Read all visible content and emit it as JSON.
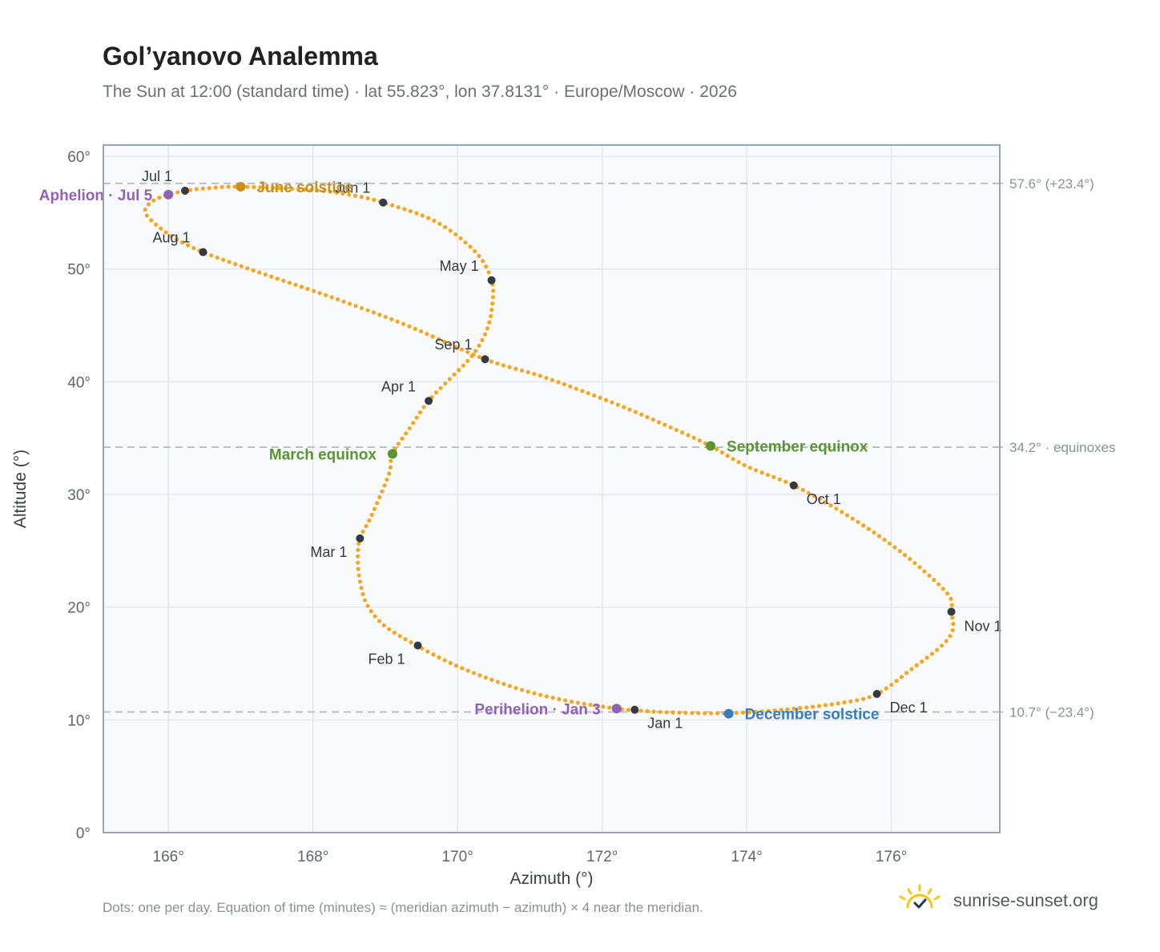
{
  "header": {
    "title": "Gol’yanovo Analemma",
    "subtitle": "The Sun at 12:00 (standard time) · lat 55.823°, lon 37.8131° · Europe/Moscow · 2026"
  },
  "footer": {
    "note": "Dots: one per day. Equation of time (minutes) ≈ (meridian azimuth − azimuth) × 4 near the meridian.",
    "brand": "sunrise-sunset.org",
    "logo_icon": "sun-check-icon"
  },
  "colors": {
    "curve": "#f5a623",
    "month_marker": "#343a40",
    "solstice_june": "#c8901a",
    "equinox": "#5a9534",
    "solstice_december": "#3a7bbd",
    "apsis": "#9161b5",
    "reference_line": "#b9c1cb",
    "plot_bg": "#f8fafc",
    "frame": "#9aa5b3"
  },
  "chart_data": {
    "type": "scatter",
    "xlabel": "Azimuth (°)",
    "ylabel": "Altitude (°)",
    "xlim": [
      165.1,
      177.5
    ],
    "ylim": [
      0,
      61
    ],
    "xticks": [
      166,
      168,
      170,
      172,
      174,
      176
    ],
    "yticks": [
      0,
      10,
      20,
      30,
      40,
      50,
      60
    ],
    "tick_suffix": "°",
    "grid": true,
    "curve_points": [
      [
        172.45,
        10.85
      ],
      [
        172.15,
        11.05
      ],
      [
        171.55,
        11.65
      ],
      [
        170.95,
        12.55
      ],
      [
        170.35,
        13.85
      ],
      [
        169.9,
        15.05
      ],
      [
        169.45,
        16.55
      ],
      [
        169.0,
        18.3
      ],
      [
        168.75,
        20.2
      ],
      [
        168.65,
        22.3
      ],
      [
        168.62,
        24.2
      ],
      [
        168.65,
        26.1
      ],
      [
        168.8,
        28.0
      ],
      [
        169.05,
        31.8
      ],
      [
        169.1,
        33.6
      ],
      [
        169.35,
        36.0
      ],
      [
        169.6,
        38.3
      ],
      [
        169.9,
        40.3
      ],
      [
        170.2,
        42.3
      ],
      [
        170.4,
        44.5
      ],
      [
        170.48,
        46.8
      ],
      [
        170.47,
        49.0
      ],
      [
        170.25,
        51.5
      ],
      [
        169.7,
        54.2
      ],
      [
        168.97,
        55.9
      ],
      [
        168.5,
        56.6
      ],
      [
        168.0,
        57.0
      ],
      [
        167.0,
        57.3
      ],
      [
        166.5,
        57.15
      ],
      [
        166.25,
        56.95
      ],
      [
        166.0,
        56.6
      ],
      [
        165.8,
        56.1
      ],
      [
        165.68,
        55.3
      ],
      [
        165.75,
        54.4
      ],
      [
        166.05,
        52.9
      ],
      [
        166.48,
        51.5
      ],
      [
        167.3,
        49.6
      ],
      [
        168.3,
        47.4
      ],
      [
        169.3,
        45.0
      ],
      [
        170.38,
        42.0
      ],
      [
        171.2,
        40.4
      ],
      [
        172.2,
        38.0
      ],
      [
        173.0,
        35.8
      ],
      [
        173.5,
        34.3
      ],
      [
        174.0,
        32.5
      ],
      [
        174.65,
        30.8
      ],
      [
        175.3,
        28.5
      ],
      [
        175.9,
        26.0
      ],
      [
        176.4,
        23.5
      ],
      [
        176.8,
        21.0
      ],
      [
        176.83,
        19.6
      ],
      [
        176.85,
        18.0
      ],
      [
        176.7,
        16.6
      ],
      [
        176.3,
        14.6
      ],
      [
        175.8,
        12.3
      ],
      [
        175.3,
        11.5
      ],
      [
        174.5,
        10.9
      ],
      [
        173.75,
        10.6
      ],
      [
        173.0,
        10.65
      ],
      [
        172.45,
        10.85
      ]
    ],
    "month_markers": [
      {
        "label": "Jan 1",
        "x": 172.45,
        "y": 10.9,
        "anchor": "below-right"
      },
      {
        "label": "Feb 1",
        "x": 169.45,
        "y": 16.6,
        "anchor": "below-left"
      },
      {
        "label": "Mar 1",
        "x": 168.65,
        "y": 26.1,
        "anchor": "below-left"
      },
      {
        "label": "Apr 1",
        "x": 169.6,
        "y": 38.3,
        "anchor": "above-left"
      },
      {
        "label": "May 1",
        "x": 170.47,
        "y": 49.0,
        "anchor": "above-left"
      },
      {
        "label": "Jun 1",
        "x": 168.97,
        "y": 55.9,
        "anchor": "above-left"
      },
      {
        "label": "Jul 1",
        "x": 166.23,
        "y": 56.95,
        "anchor": "above-left"
      },
      {
        "label": "Aug 1",
        "x": 166.48,
        "y": 51.5,
        "anchor": "above-left"
      },
      {
        "label": "Sep 1",
        "x": 170.38,
        "y": 42.0,
        "anchor": "above-left"
      },
      {
        "label": "Oct 1",
        "x": 174.65,
        "y": 30.8,
        "anchor": "below-right"
      },
      {
        "label": "Nov 1",
        "x": 176.83,
        "y": 19.6,
        "anchor": "right"
      },
      {
        "label": "Dec 1",
        "x": 175.8,
        "y": 12.3,
        "anchor": "below-right"
      }
    ],
    "events": [
      {
        "label": "June solstice",
        "x": 167.0,
        "y": 57.3,
        "color": "#c8901a",
        "anchor": "right"
      },
      {
        "label": "March equinox",
        "x": 169.1,
        "y": 33.6,
        "color": "#5a9534",
        "anchor": "left"
      },
      {
        "label": "September equinox",
        "x": 173.5,
        "y": 34.3,
        "color": "#5a9534",
        "anchor": "right"
      },
      {
        "label": "December solstice",
        "x": 173.75,
        "y": 10.55,
        "color": "#3a7bbd",
        "anchor": "right"
      },
      {
        "label": "Aphelion · Jul 5",
        "x": 166.0,
        "y": 56.6,
        "color": "#9161b5",
        "anchor": "left"
      },
      {
        "label": "Perihelion · Jan 3",
        "x": 172.2,
        "y": 11.0,
        "color": "#9161b5",
        "anchor": "left"
      }
    ],
    "reference_lines": [
      {
        "y": 57.6,
        "label": "57.6° (+23.4°)"
      },
      {
        "y": 34.2,
        "label": "34.2° · equinoxes"
      },
      {
        "y": 10.7,
        "label": "10.7° (−23.4°)"
      }
    ]
  }
}
